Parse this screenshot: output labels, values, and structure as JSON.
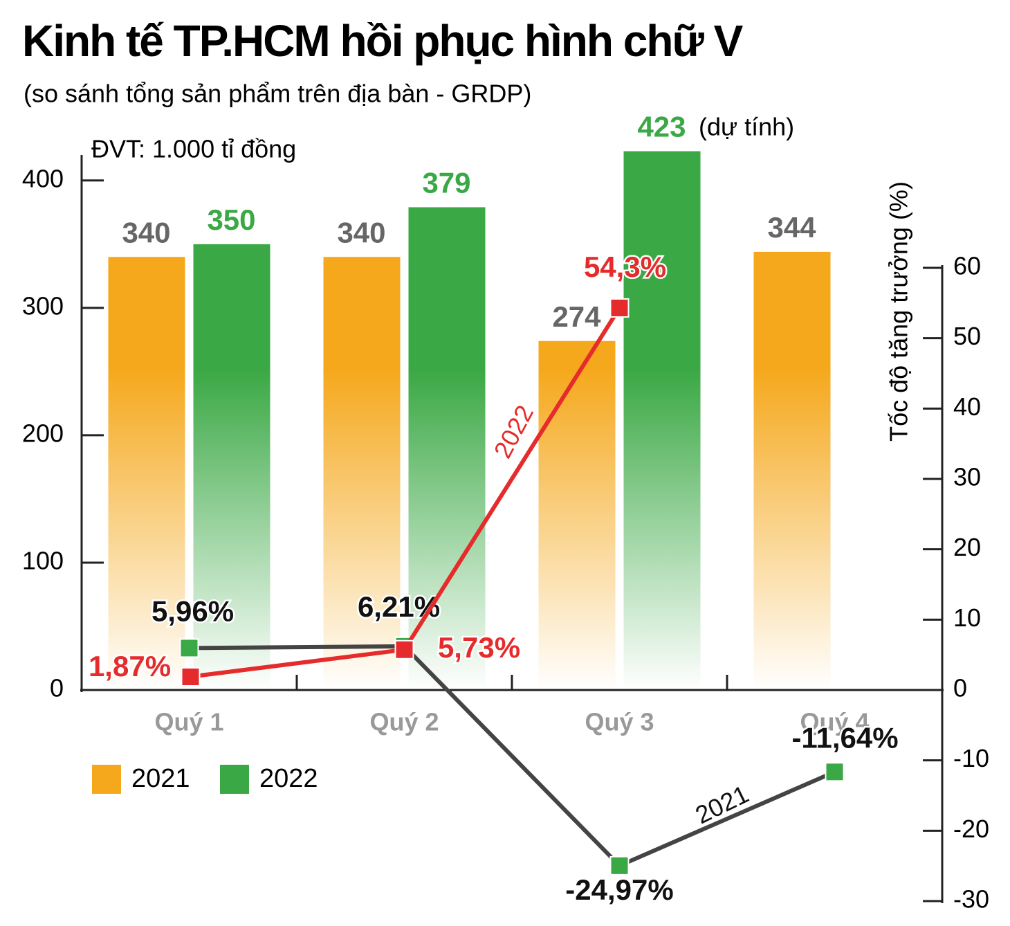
{
  "chart_data": {
    "type": "bar",
    "title": "Kinh tế TP.HCM hồi phục hình chữ V",
    "subtitle": "(so sánh tổng sản phẩm trên địa bàn - GRDP)",
    "unit_label": "ĐVT: 1.000 tỉ đồng",
    "y2_label": "Tốc độ tăng trưởng (%)",
    "annotation": "(dự tính)",
    "categories": [
      "Quý 1",
      "Quý 2",
      "Quý 3",
      "Quý 4"
    ],
    "ylim": [
      0,
      420
    ],
    "yticks": [
      0,
      100,
      200,
      300,
      400
    ],
    "y2lim": [
      -30,
      60
    ],
    "y2ticks": [
      -30,
      -20,
      -10,
      0,
      10,
      20,
      30,
      40,
      50,
      60
    ],
    "series": [
      {
        "name": "2021",
        "type": "bar",
        "color": "#f5a81c",
        "values": [
          340,
          340,
          274,
          344
        ]
      },
      {
        "name": "2022",
        "type": "bar",
        "color": "#3aa844",
        "values": [
          350,
          379,
          423,
          null
        ]
      },
      {
        "name": "2021",
        "type": "line",
        "axis": "y2",
        "color": "#444444",
        "values": [
          5.96,
          6.21,
          -24.97,
          -11.64
        ],
        "value_labels": [
          "5,96%",
          "6,21%",
          "-24,97%",
          "-11,64%"
        ]
      },
      {
        "name": "2022",
        "type": "line",
        "axis": "y2",
        "color": "#e52b2b",
        "values": [
          1.87,
          5.73,
          54.3,
          null
        ],
        "value_labels": [
          "1,87%",
          "5,73%",
          "54,3%",
          null
        ]
      }
    ]
  }
}
